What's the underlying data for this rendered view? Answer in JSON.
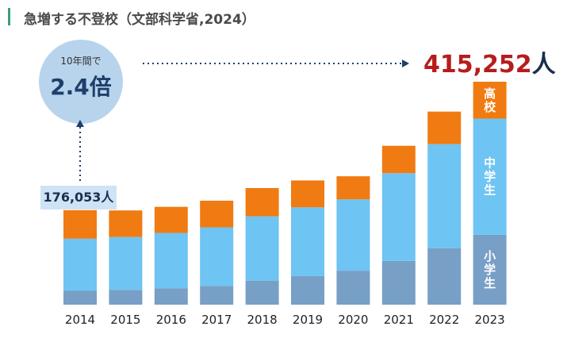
{
  "title": "急増する不登校（文部科学省,2024）",
  "bubble": {
    "caption": "10年間で",
    "value": "2.4倍"
  },
  "start_label": "176,053人",
  "end_label": {
    "number": "415,252",
    "unit": "人"
  },
  "colors": {
    "elementary": "#789fc6",
    "junior_high": "#6ec4f2",
    "high_school": "#f07b12"
  },
  "chart_data": {
    "type": "bar",
    "stacked": true,
    "categories": [
      "2014",
      "2015",
      "2016",
      "2017",
      "2018",
      "2019",
      "2020",
      "2021",
      "2022",
      "2023"
    ],
    "series": [
      {
        "name": "小学生",
        "key": "elementary",
        "values": [
          25864,
          27583,
          30448,
          35032,
          44841,
          53350,
          63350,
          81498,
          105112,
          130370
        ]
      },
      {
        "name": "中学生",
        "key": "junior_high",
        "values": [
          97033,
          98408,
          103235,
          108999,
          119687,
          127922,
          132777,
          163442,
          193936,
          216112
        ]
      },
      {
        "name": "高校",
        "key": "high_school",
        "values": [
          53156,
          49563,
          48565,
          49643,
          52723,
          50100,
          43051,
          50985,
          60575,
          68770
        ]
      }
    ],
    "totals": [
      176053,
      null,
      null,
      null,
      null,
      null,
      null,
      null,
      null,
      415252
    ],
    "ylim": [
      0,
      415252
    ],
    "legend": "inside last bar",
    "grid": false
  }
}
